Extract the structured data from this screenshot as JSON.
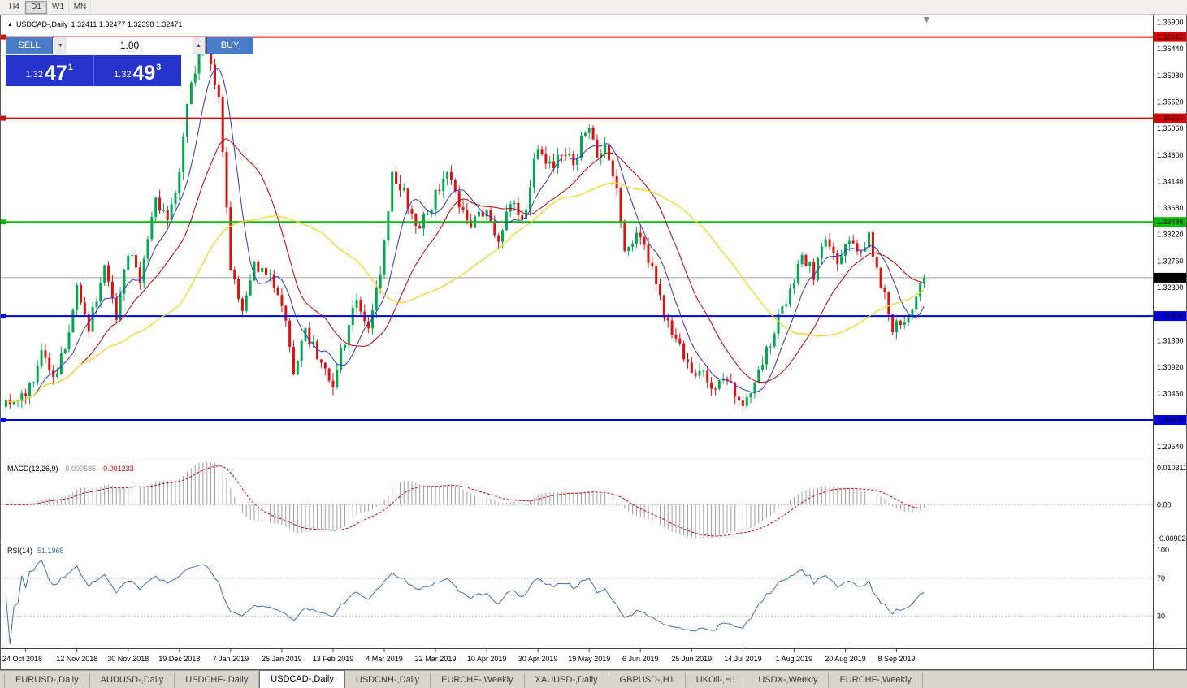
{
  "window": {
    "caption_arrow": "▲",
    "symbol": "USDCAD-,Daily",
    "ohlc": "1.32411 1.32477 1.32398 1.32471"
  },
  "toolbar": {
    "timeframes": [
      {
        "label": "H4",
        "active": false
      },
      {
        "label": "D1",
        "active": true
      },
      {
        "label": "W1",
        "active": false
      },
      {
        "label": "MN",
        "active": false
      }
    ]
  },
  "trade_panel": {
    "sell_label": "SELL",
    "buy_label": "BUY",
    "volume": "1.00",
    "decrease_icon": "▼",
    "increase_icon": "▲",
    "sell_price": {
      "small": "1.32",
      "big": "47",
      "sup": "1"
    },
    "buy_price": {
      "small": "1.32",
      "big": "49",
      "sup": "3"
    }
  },
  "macd_panel": {
    "name": "MACD(12,26,9)",
    "main_value": "-0.000585",
    "signal_value": "-0.001233",
    "axis": {
      "top": "0.010311",
      "mid": "0.00",
      "bottom": "-0.009020"
    }
  },
  "rsi_panel": {
    "name": "RSI(14)",
    "value": "51.1968",
    "axis": {
      "top": "100",
      "upper": "70",
      "lower": "30"
    }
  },
  "chart_data": {
    "type": "candlestick",
    "symbol": "USDCAD",
    "timeframe": "Daily",
    "candles_total": 234,
    "y_range": [
      1.293,
      1.3702
    ],
    "axis_ticks": [
      1.369,
      1.3644,
      1.3598,
      1.3552,
      1.3506,
      1.346,
      1.3414,
      1.3368,
      1.3322,
      1.3276,
      1.323,
      1.3184,
      1.3138,
      1.3092,
      1.3046,
      1.3,
      1.2954
    ],
    "current_price": 1.32471,
    "current_price_label": "1.32471",
    "hlines": [
      {
        "price": 1.36645,
        "color": "#e00000",
        "label": "1.36645"
      },
      {
        "price": 1.35237,
        "color": "#e00000",
        "label": "1.35237"
      },
      {
        "price": 1.33439,
        "color": "#00c000",
        "label": "1.33439"
      },
      {
        "price": 1.31806,
        "color": "#0000e0",
        "label": "1.31806"
      },
      {
        "price": 1.30004,
        "color": "#0000e0",
        "label": "1.30004"
      }
    ],
    "price_anchors": [
      [
        0,
        1.3035
      ],
      [
        5,
        1.3045
      ],
      [
        9,
        1.311
      ],
      [
        12,
        1.307
      ],
      [
        15,
        1.313
      ],
      [
        18,
        1.323
      ],
      [
        21,
        1.316
      ],
      [
        25,
        1.327
      ],
      [
        28,
        1.3185
      ],
      [
        31,
        1.329
      ],
      [
        34,
        1.3245
      ],
      [
        38,
        1.3395
      ],
      [
        41,
        1.3335
      ],
      [
        44,
        1.344
      ],
      [
        47,
        1.359
      ],
      [
        50,
        1.365
      ],
      [
        52,
        1.362
      ],
      [
        54,
        1.355
      ],
      [
        57,
        1.3265
      ],
      [
        60,
        1.318
      ],
      [
        63,
        1.327
      ],
      [
        67,
        1.3245
      ],
      [
        70,
        1.321
      ],
      [
        73,
        1.3085
      ],
      [
        76,
        1.315
      ],
      [
        79,
        1.3115
      ],
      [
        83,
        1.3065
      ],
      [
        86,
        1.314
      ],
      [
        89,
        1.3205
      ],
      [
        92,
        1.317
      ],
      [
        95,
        1.325
      ],
      [
        98,
        1.343
      ],
      [
        101,
        1.3395
      ],
      [
        104,
        1.333
      ],
      [
        107,
        1.3355
      ],
      [
        109,
        1.339
      ],
      [
        112,
        1.3435
      ],
      [
        115,
        1.337
      ],
      [
        118,
        1.3345
      ],
      [
        122,
        1.3365
      ],
      [
        125,
        1.331
      ],
      [
        128,
        1.338
      ],
      [
        131,
        1.3345
      ],
      [
        135,
        1.3475
      ],
      [
        138,
        1.344
      ],
      [
        141,
        1.3465
      ],
      [
        144,
        1.345
      ],
      [
        148,
        1.3515
      ],
      [
        150,
        1.346
      ],
      [
        152,
        1.348
      ],
      [
        155,
        1.341
      ],
      [
        157,
        1.33
      ],
      [
        161,
        1.332
      ],
      [
        164,
        1.3265
      ],
      [
        167,
        1.318
      ],
      [
        170,
        1.314
      ],
      [
        174,
        1.308
      ],
      [
        177,
        1.309
      ],
      [
        180,
        1.305
      ],
      [
        183,
        1.3075
      ],
      [
        187,
        1.303
      ],
      [
        190,
        1.306
      ],
      [
        193,
        1.312
      ],
      [
        196,
        1.3175
      ],
      [
        200,
        1.323
      ],
      [
        202,
        1.329
      ],
      [
        205,
        1.325
      ],
      [
        208,
        1.331
      ],
      [
        211,
        1.328
      ],
      [
        213,
        1.331
      ],
      [
        216,
        1.329
      ],
      [
        219,
        1.332
      ],
      [
        222,
        1.324
      ],
      [
        225,
        1.3155
      ],
      [
        228,
        1.3175
      ],
      [
        231,
        1.3215
      ],
      [
        233,
        1.32471
      ]
    ],
    "x_labels": [
      "24 Oct 2018",
      "12 Nov 2018",
      "30 Nov 2018",
      "19 Dec 2018",
      "7 Jan 2019",
      "25 Jan 2019",
      "13 Feb 2019",
      "4 Mar 2019",
      "22 Mar 2019",
      "10 Apr 2019",
      "30 Apr 2019",
      "19 May 2019",
      "6 Jun 2019",
      "25 Jun 2019",
      "14 Jul 2019",
      "1 Aug 2019",
      "20 Aug 2019",
      "8 Sep 2019"
    ],
    "x_label_first_index": 5,
    "x_label_step": 13,
    "moving_averages": [
      {
        "period": 8,
        "color_key": "ma_fast"
      },
      {
        "period": 20,
        "color_key": "ma_mid"
      },
      {
        "period": 45,
        "color_key": "ma_slow"
      }
    ],
    "macd": {
      "fast": 12,
      "slow": 26,
      "signal": 9,
      "range": [
        -0.00902,
        0.01031
      ]
    },
    "rsi": {
      "period": 14,
      "levels": [
        70,
        30
      ],
      "display_range": [
        -5,
        107
      ]
    },
    "colors": {
      "bull": "#00a84f",
      "bear": "#e01010",
      "ma_fast": "#3333cc",
      "ma_mid": "#c00000",
      "ma_slow": "#f5d327",
      "macd_hist": "#a0a0a0",
      "macd_signal": "#cc0000",
      "rsi": "#3e6fbe",
      "current_price_line": "#a8a8a8",
      "current_price_box": "#000000"
    }
  },
  "tabs": [
    {
      "label": "EURUSD-,Daily",
      "active": false
    },
    {
      "label": "AUDUSD-,Daily",
      "active": false
    },
    {
      "label": "USDCHF-,Daily",
      "active": false
    },
    {
      "label": "USDCAD-,Daily",
      "active": true
    },
    {
      "label": "USDCNH-,Daily",
      "active": false
    },
    {
      "label": "EURCHF-,Weekly",
      "active": false
    },
    {
      "label": "XAUUSD-,Daily",
      "active": false
    },
    {
      "label": "GBPUSD-,H1",
      "active": false
    },
    {
      "label": "UKOil-,H1",
      "active": false
    },
    {
      "label": "USDX-,Weekly",
      "active": false
    },
    {
      "label": "EURCHF-,Weekly",
      "active": false
    }
  ]
}
